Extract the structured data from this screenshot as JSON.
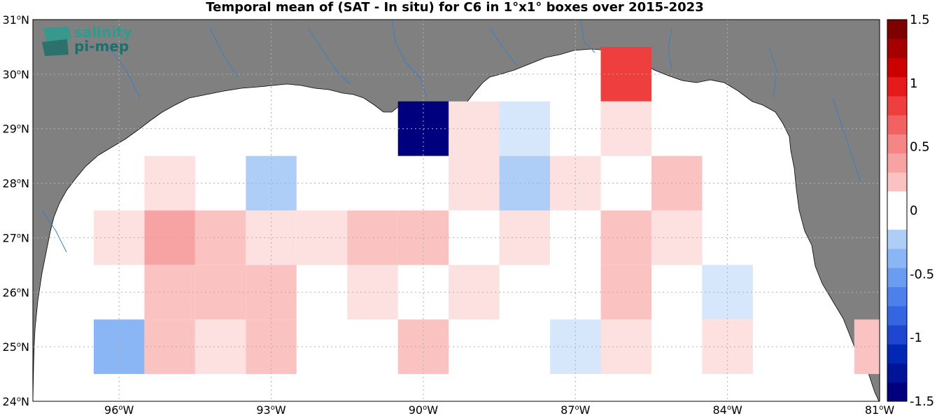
{
  "title": "Temporal mean of (SAT - In situ) for C6 in 1°x1° boxes over 2015-2023",
  "logo": {
    "line1": "salinity",
    "line2": "pi-mep"
  },
  "axes": {
    "lon_labels": [
      {
        "deg": "96",
        "hem": "W",
        "value": -96
      },
      {
        "deg": "93",
        "hem": "W",
        "value": -93
      },
      {
        "deg": "90",
        "hem": "W",
        "value": -90
      },
      {
        "deg": "87",
        "hem": "W",
        "value": -87
      },
      {
        "deg": "84",
        "hem": "W",
        "value": -84
      },
      {
        "deg": "81",
        "hem": "W",
        "value": -81
      }
    ],
    "lat_labels": [
      {
        "deg": "24",
        "hem": "N",
        "value": 24
      },
      {
        "deg": "25",
        "hem": "N",
        "value": 25
      },
      {
        "deg": "26",
        "hem": "N",
        "value": 26
      },
      {
        "deg": "27",
        "hem": "N",
        "value": 27
      },
      {
        "deg": "28",
        "hem": "N",
        "value": 28
      },
      {
        "deg": "29",
        "hem": "N",
        "value": 29
      },
      {
        "deg": "30",
        "hem": "N",
        "value": 30
      },
      {
        "deg": "31",
        "hem": "N",
        "value": 31
      }
    ],
    "lon_range": [
      -97.7,
      -81
    ],
    "lat_range": [
      24,
      31
    ]
  },
  "colorbar": {
    "min": -1.5,
    "max": 1.5,
    "ticks": [
      "1.5",
      "1",
      "0.5",
      "0",
      "-0.5",
      "-1",
      "-1.5"
    ],
    "tick_values": [
      1.5,
      1,
      0.5,
      0,
      -0.5,
      -1,
      -1.5
    ]
  },
  "colors": {
    "land": "#808080",
    "ocean": "#ffffff",
    "river": "#3a7fc4",
    "grid": "#b0b0b0"
  },
  "cells": [
    {
      "lon": -95,
      "lat": 28,
      "v": 0.2
    },
    {
      "lon": -93,
      "lat": 28,
      "v": -0.3
    },
    {
      "lon": -90,
      "lat": 29,
      "v": -1.5
    },
    {
      "lon": -89,
      "lat": 29,
      "v": 0.2
    },
    {
      "lon": -89,
      "lat": 28,
      "v": 0.2
    },
    {
      "lon": -88,
      "lat": 29,
      "v": -0.15
    },
    {
      "lon": -88,
      "lat": 28,
      "v": -0.35
    },
    {
      "lon": -87,
      "lat": 28,
      "v": 0.2
    },
    {
      "lon": -86,
      "lat": 30,
      "v": 0.95
    },
    {
      "lon": -86,
      "lat": 29,
      "v": 0.2
    },
    {
      "lon": -85,
      "lat": 28,
      "v": 0.35
    },
    {
      "lon": -96,
      "lat": 27,
      "v": 0.2
    },
    {
      "lon": -95,
      "lat": 27,
      "v": 0.5
    },
    {
      "lon": -94,
      "lat": 27,
      "v": 0.35
    },
    {
      "lon": -93,
      "lat": 27,
      "v": 0.2
    },
    {
      "lon": -92,
      "lat": 27,
      "v": 0.2
    },
    {
      "lon": -91,
      "lat": 27,
      "v": 0.35
    },
    {
      "lon": -90,
      "lat": 27,
      "v": 0.35
    },
    {
      "lon": -88,
      "lat": 27,
      "v": 0.2
    },
    {
      "lon": -86,
      "lat": 27,
      "v": 0.35
    },
    {
      "lon": -85,
      "lat": 27,
      "v": 0.2
    },
    {
      "lon": -95,
      "lat": 26,
      "v": 0.35
    },
    {
      "lon": -94,
      "lat": 26,
      "v": 0.35
    },
    {
      "lon": -93,
      "lat": 26,
      "v": 0.35
    },
    {
      "lon": -91,
      "lat": 26,
      "v": 0.2
    },
    {
      "lon": -89,
      "lat": 26,
      "v": 0.2
    },
    {
      "lon": -86,
      "lat": 26,
      "v": 0.35
    },
    {
      "lon": -84,
      "lat": 26,
      "v": -0.15
    },
    {
      "lon": -96,
      "lat": 25,
      "v": -0.45
    },
    {
      "lon": -95,
      "lat": 25,
      "v": 0.35
    },
    {
      "lon": -94,
      "lat": 25,
      "v": 0.2
    },
    {
      "lon": -93,
      "lat": 25,
      "v": 0.35
    },
    {
      "lon": -90,
      "lat": 25,
      "v": 0.35
    },
    {
      "lon": -87,
      "lat": 25,
      "v": -0.15
    },
    {
      "lon": -86,
      "lat": 25,
      "v": 0.2
    },
    {
      "lon": -84,
      "lat": 25,
      "v": 0.2
    },
    {
      "lon": -81,
      "lat": 25,
      "v": 0.35
    }
  ]
}
